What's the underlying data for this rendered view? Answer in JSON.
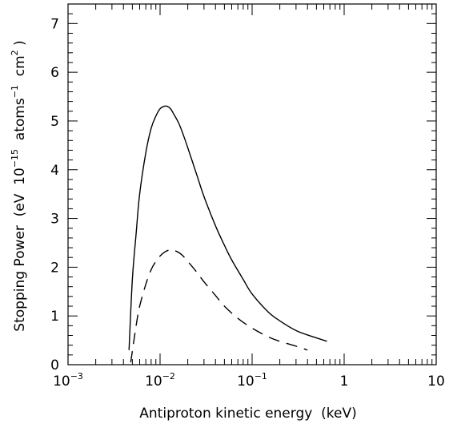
{
  "chart_data": {
    "type": "line",
    "title": "",
    "xlabel": "Antiproton kinetic energy  (keV)",
    "ylabel": {
      "parts": [
        {
          "text": "Stopping Power  (eV  10",
          "sup": false
        },
        {
          "text": "−15",
          "sup": true
        },
        {
          "text": "  atoms",
          "sup": false
        },
        {
          "text": "−1",
          "sup": true
        },
        {
          "text": "  cm",
          "sup": false
        },
        {
          "text": "2",
          "sup": true
        },
        {
          "text": " )",
          "sup": false
        }
      ]
    },
    "x_scale": "log",
    "xlim": [
      0.001,
      10
    ],
    "ylim": [
      0,
      7.4
    ],
    "grid": false,
    "x_ticks": [
      {
        "value": 0.001,
        "base": "10",
        "exp": "−3"
      },
      {
        "value": 0.01,
        "base": "10",
        "exp": "−2"
      },
      {
        "value": 0.1,
        "base": "10",
        "exp": "−1"
      },
      {
        "value": 1,
        "base": "1",
        "exp": ""
      },
      {
        "value": 10,
        "base": "10",
        "exp": ""
      }
    ],
    "y_ticks": [
      0,
      1,
      2,
      3,
      4,
      5,
      6,
      7
    ],
    "series": [
      {
        "style": "solid",
        "x": [
          0.0046,
          0.005,
          0.0055,
          0.006,
          0.007,
          0.008,
          0.009,
          0.01,
          0.011,
          0.012,
          0.013,
          0.014,
          0.016,
          0.018,
          0.02,
          0.025,
          0.03,
          0.04,
          0.05,
          0.06,
          0.08,
          0.1,
          0.15,
          0.2,
          0.3,
          0.4,
          0.5,
          0.65
        ],
        "y": [
          0.3,
          1.75,
          2.7,
          3.5,
          4.35,
          4.85,
          5.1,
          5.25,
          5.3,
          5.3,
          5.25,
          5.15,
          4.95,
          4.7,
          4.45,
          3.9,
          3.45,
          2.85,
          2.45,
          2.15,
          1.75,
          1.45,
          1.08,
          0.9,
          0.7,
          0.61,
          0.55,
          0.48
        ]
      },
      {
        "style": "dashed",
        "x": [
          0.0048,
          0.0052,
          0.0056,
          0.006,
          0.007,
          0.008,
          0.009,
          0.01,
          0.011,
          0.012,
          0.013,
          0.014,
          0.016,
          0.018,
          0.02,
          0.025,
          0.03,
          0.04,
          0.05,
          0.07,
          0.1,
          0.15,
          0.2,
          0.3,
          0.4
        ],
        "y": [
          0.05,
          0.5,
          0.9,
          1.2,
          1.65,
          1.95,
          2.12,
          2.23,
          2.3,
          2.34,
          2.36,
          2.35,
          2.3,
          2.22,
          2.12,
          1.9,
          1.7,
          1.42,
          1.2,
          0.95,
          0.75,
          0.57,
          0.48,
          0.38,
          0.3
        ]
      }
    ]
  }
}
